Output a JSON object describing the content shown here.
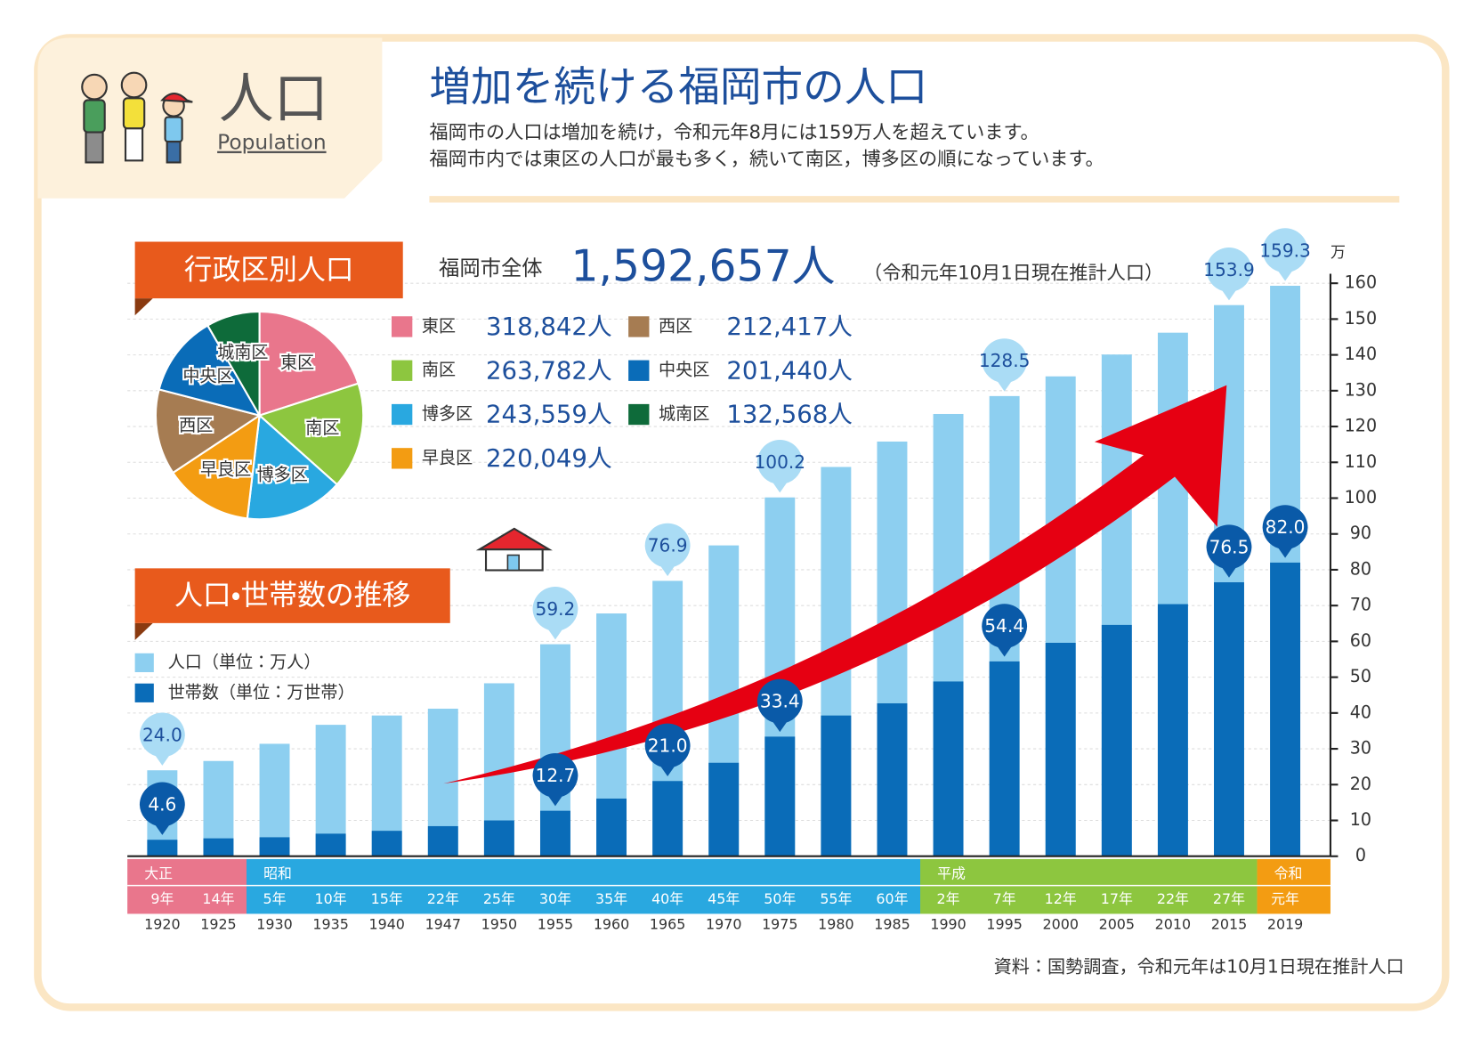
{
  "header": {
    "title_jp": "人口",
    "title_en": "Population",
    "title": "増加を続ける福岡市の人口",
    "description": [
      "福岡市の人口は増加を続け，令和元年8月には159万人を超えています。",
      "福岡市内では東区の人口が最も多く，続いて南区，博多区の順になっています。"
    ]
  },
  "chart_data": [
    {
      "type": "pie",
      "title": "行政区別人口",
      "total_label": "福岡市全体",
      "total": {
        "value": 1592657,
        "label": "1,592,657人"
      },
      "note": "（令和元年10月1日現在推計人口）",
      "categories": [
        "東区",
        "南区",
        "博多区",
        "早良区",
        "西区",
        "中央区",
        "城南区"
      ],
      "values": [
        318842,
        263782,
        243559,
        220049,
        212417,
        201440,
        132568
      ],
      "value_labels": [
        "318,842人",
        "263,782人",
        "243,559人",
        "220,049人",
        "212,417人",
        "201,440人",
        "132,568人"
      ],
      "colors": [
        "#e9768c",
        "#8dc63f",
        "#29a8e0",
        "#f39c12",
        "#a67c52",
        "#0a6cb8",
        "#0e6b3a"
      ]
    },
    {
      "type": "bar",
      "title": "人口・世帯数の推移",
      "categories": [
        "1920",
        "1925",
        "1930",
        "1935",
        "1940",
        "1947",
        "1950",
        "1955",
        "1960",
        "1965",
        "1970",
        "1975",
        "1980",
        "1985",
        "1990",
        "1995",
        "2000",
        "2005",
        "2010",
        "2015",
        "2019"
      ],
      "era_years": [
        "9年",
        "14年",
        "5年",
        "10年",
        "15年",
        "22年",
        "25年",
        "30年",
        "35年",
        "40年",
        "45年",
        "50年",
        "55年",
        "60年",
        "2年",
        "7年",
        "12年",
        "17年",
        "22年",
        "27年",
        "元年"
      ],
      "eras": [
        {
          "name": "大正",
          "color": "#e9768c",
          "span": 2
        },
        {
          "name": "昭和",
          "color": "#29a8e0",
          "span": 12
        },
        {
          "name": "平成",
          "color": "#8dc63f",
          "span": 6
        },
        {
          "name": "令和",
          "color": "#f39c12",
          "span": 1
        }
      ],
      "series": [
        {
          "name": "人口（単位：万人）",
          "color": "#8dcff0",
          "values": [
            24.0,
            26.6,
            31.4,
            36.7,
            39.3,
            41.2,
            48.3,
            59.2,
            67.8,
            76.9,
            86.8,
            100.2,
            108.7,
            115.8,
            123.5,
            128.5,
            134.0,
            140.1,
            146.2,
            153.9,
            159.3
          ],
          "value_labels": [
            "24.0",
            null,
            null,
            null,
            null,
            null,
            null,
            "59.2",
            null,
            "76.9",
            null,
            "100.2",
            null,
            null,
            null,
            "128.5",
            null,
            null,
            null,
            "153.9",
            "159.3"
          ]
        },
        {
          "name": "世帯数（単位：万世帯）",
          "color": "#0a6cb8",
          "values": [
            4.6,
            5.0,
            5.3,
            6.3,
            7.1,
            8.4,
            10.0,
            12.7,
            16.1,
            21.0,
            26.1,
            33.4,
            39.3,
            42.7,
            48.8,
            54.4,
            59.6,
            64.6,
            70.4,
            76.5,
            82.0
          ],
          "value_labels": [
            "4.6",
            null,
            null,
            null,
            null,
            null,
            null,
            "12.7",
            null,
            "21.0",
            null,
            "33.4",
            null,
            null,
            null,
            "54.4",
            null,
            null,
            null,
            "76.5",
            "82.0"
          ]
        }
      ],
      "ylim": [
        0,
        160
      ],
      "yticks": [
        0,
        10,
        20,
        30,
        40,
        50,
        60,
        70,
        80,
        90,
        100,
        110,
        120,
        130,
        140,
        150,
        160
      ],
      "y_unit": "万",
      "grid": true
    }
  ],
  "source": "資料：国勢調査，令和元年は10月1日現在推計人口"
}
